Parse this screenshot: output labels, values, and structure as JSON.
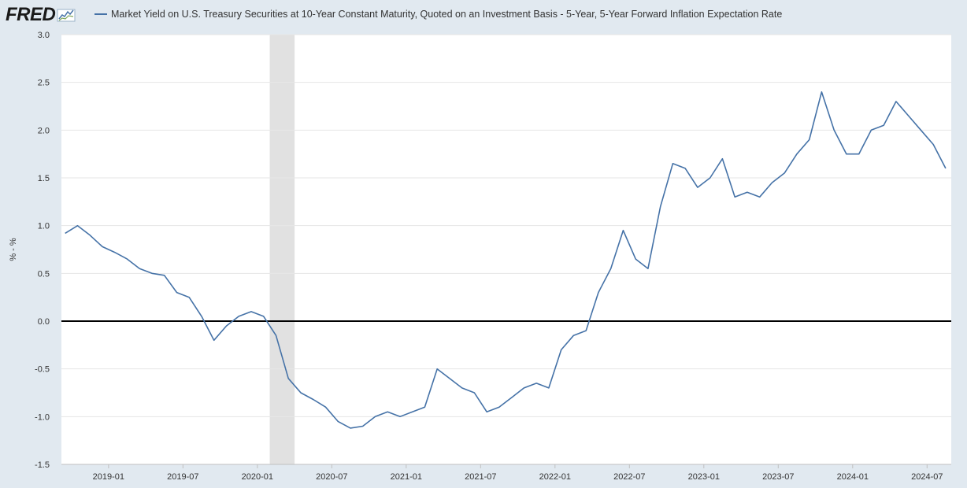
{
  "brand": {
    "logo_text": "FRED"
  },
  "colors": {
    "series": "#4572a7",
    "recession": "#e1e1e1",
    "zero_line": "#000000",
    "grid": "#e6e6e6",
    "background": "#e1e9f0",
    "plot_bg": "#ffffff"
  },
  "chart_data": {
    "type": "line",
    "title": "",
    "xlabel": "",
    "ylabel": "% - %",
    "ylim": [
      -1.5,
      3.0
    ],
    "yticks": [
      "-1.5",
      "-1.0",
      "-0.5",
      "0.0",
      "0.5",
      "1.0",
      "1.5",
      "2.0",
      "2.5",
      "3.0"
    ],
    "xticks": [
      "2019-01",
      "2019-07",
      "2020-01",
      "2020-07",
      "2021-01",
      "2021-07",
      "2022-01",
      "2022-07",
      "2023-01",
      "2023-07",
      "2024-01",
      "2024-07"
    ],
    "grid": true,
    "legend_position": "top",
    "zero_line": true,
    "recession_shading": [
      [
        "2020-02",
        "2020-04"
      ]
    ],
    "series": [
      {
        "name": "Market Yield on U.S. Treasury Securities at 10-Year Constant Maturity, Quoted on an Investment Basis - 5-Year, 5-Year Forward Inflation Expectation Rate",
        "points": [
          [
            "2018-09",
            0.92
          ],
          [
            "2018-10",
            1.0
          ],
          [
            "2018-11",
            0.9
          ],
          [
            "2018-12",
            0.78
          ],
          [
            "2019-01",
            0.72
          ],
          [
            "2019-02",
            0.65
          ],
          [
            "2019-03",
            0.55
          ],
          [
            "2019-04",
            0.5
          ],
          [
            "2019-05",
            0.48
          ],
          [
            "2019-06",
            0.3
          ],
          [
            "2019-07",
            0.25
          ],
          [
            "2019-08",
            0.05
          ],
          [
            "2019-09",
            -0.2
          ],
          [
            "2019-10",
            -0.05
          ],
          [
            "2019-11",
            0.05
          ],
          [
            "2019-12",
            0.1
          ],
          [
            "2020-01",
            0.05
          ],
          [
            "2020-02",
            -0.15
          ],
          [
            "2020-03",
            -0.6
          ],
          [
            "2020-04",
            -0.75
          ],
          [
            "2020-05",
            -0.82
          ],
          [
            "2020-06",
            -0.9
          ],
          [
            "2020-07",
            -1.05
          ],
          [
            "2020-08",
            -1.12
          ],
          [
            "2020-09",
            -1.1
          ],
          [
            "2020-10",
            -1.0
          ],
          [
            "2020-11",
            -0.95
          ],
          [
            "2020-12",
            -1.0
          ],
          [
            "2021-01",
            -0.95
          ],
          [
            "2021-02",
            -0.9
          ],
          [
            "2021-03",
            -0.5
          ],
          [
            "2021-04",
            -0.6
          ],
          [
            "2021-05",
            -0.7
          ],
          [
            "2021-06",
            -0.75
          ],
          [
            "2021-07",
            -0.95
          ],
          [
            "2021-08",
            -0.9
          ],
          [
            "2021-09",
            -0.8
          ],
          [
            "2021-10",
            -0.7
          ],
          [
            "2021-11",
            -0.65
          ],
          [
            "2021-12",
            -0.7
          ],
          [
            "2022-01",
            -0.3
          ],
          [
            "2022-02",
            -0.15
          ],
          [
            "2022-03",
            -0.1
          ],
          [
            "2022-04",
            0.3
          ],
          [
            "2022-05",
            0.55
          ],
          [
            "2022-06",
            0.95
          ],
          [
            "2022-07",
            0.65
          ],
          [
            "2022-08",
            0.55
          ],
          [
            "2022-09",
            1.2
          ],
          [
            "2022-10",
            1.65
          ],
          [
            "2022-11",
            1.6
          ],
          [
            "2022-12",
            1.4
          ],
          [
            "2023-01",
            1.5
          ],
          [
            "2023-02",
            1.7
          ],
          [
            "2023-03",
            1.3
          ],
          [
            "2023-04",
            1.35
          ],
          [
            "2023-05",
            1.3
          ],
          [
            "2023-06",
            1.45
          ],
          [
            "2023-07",
            1.55
          ],
          [
            "2023-08",
            1.75
          ],
          [
            "2023-09",
            1.9
          ],
          [
            "2023-10",
            2.4
          ],
          [
            "2023-11",
            2.0
          ],
          [
            "2023-12",
            1.75
          ],
          [
            "2024-01",
            1.75
          ],
          [
            "2024-02",
            2.0
          ],
          [
            "2024-03",
            2.05
          ],
          [
            "2024-04",
            2.3
          ],
          [
            "2024-05",
            2.15
          ],
          [
            "2024-06",
            2.0
          ],
          [
            "2024-07",
            1.85
          ],
          [
            "2024-08",
            1.6
          ]
        ]
      }
    ]
  }
}
